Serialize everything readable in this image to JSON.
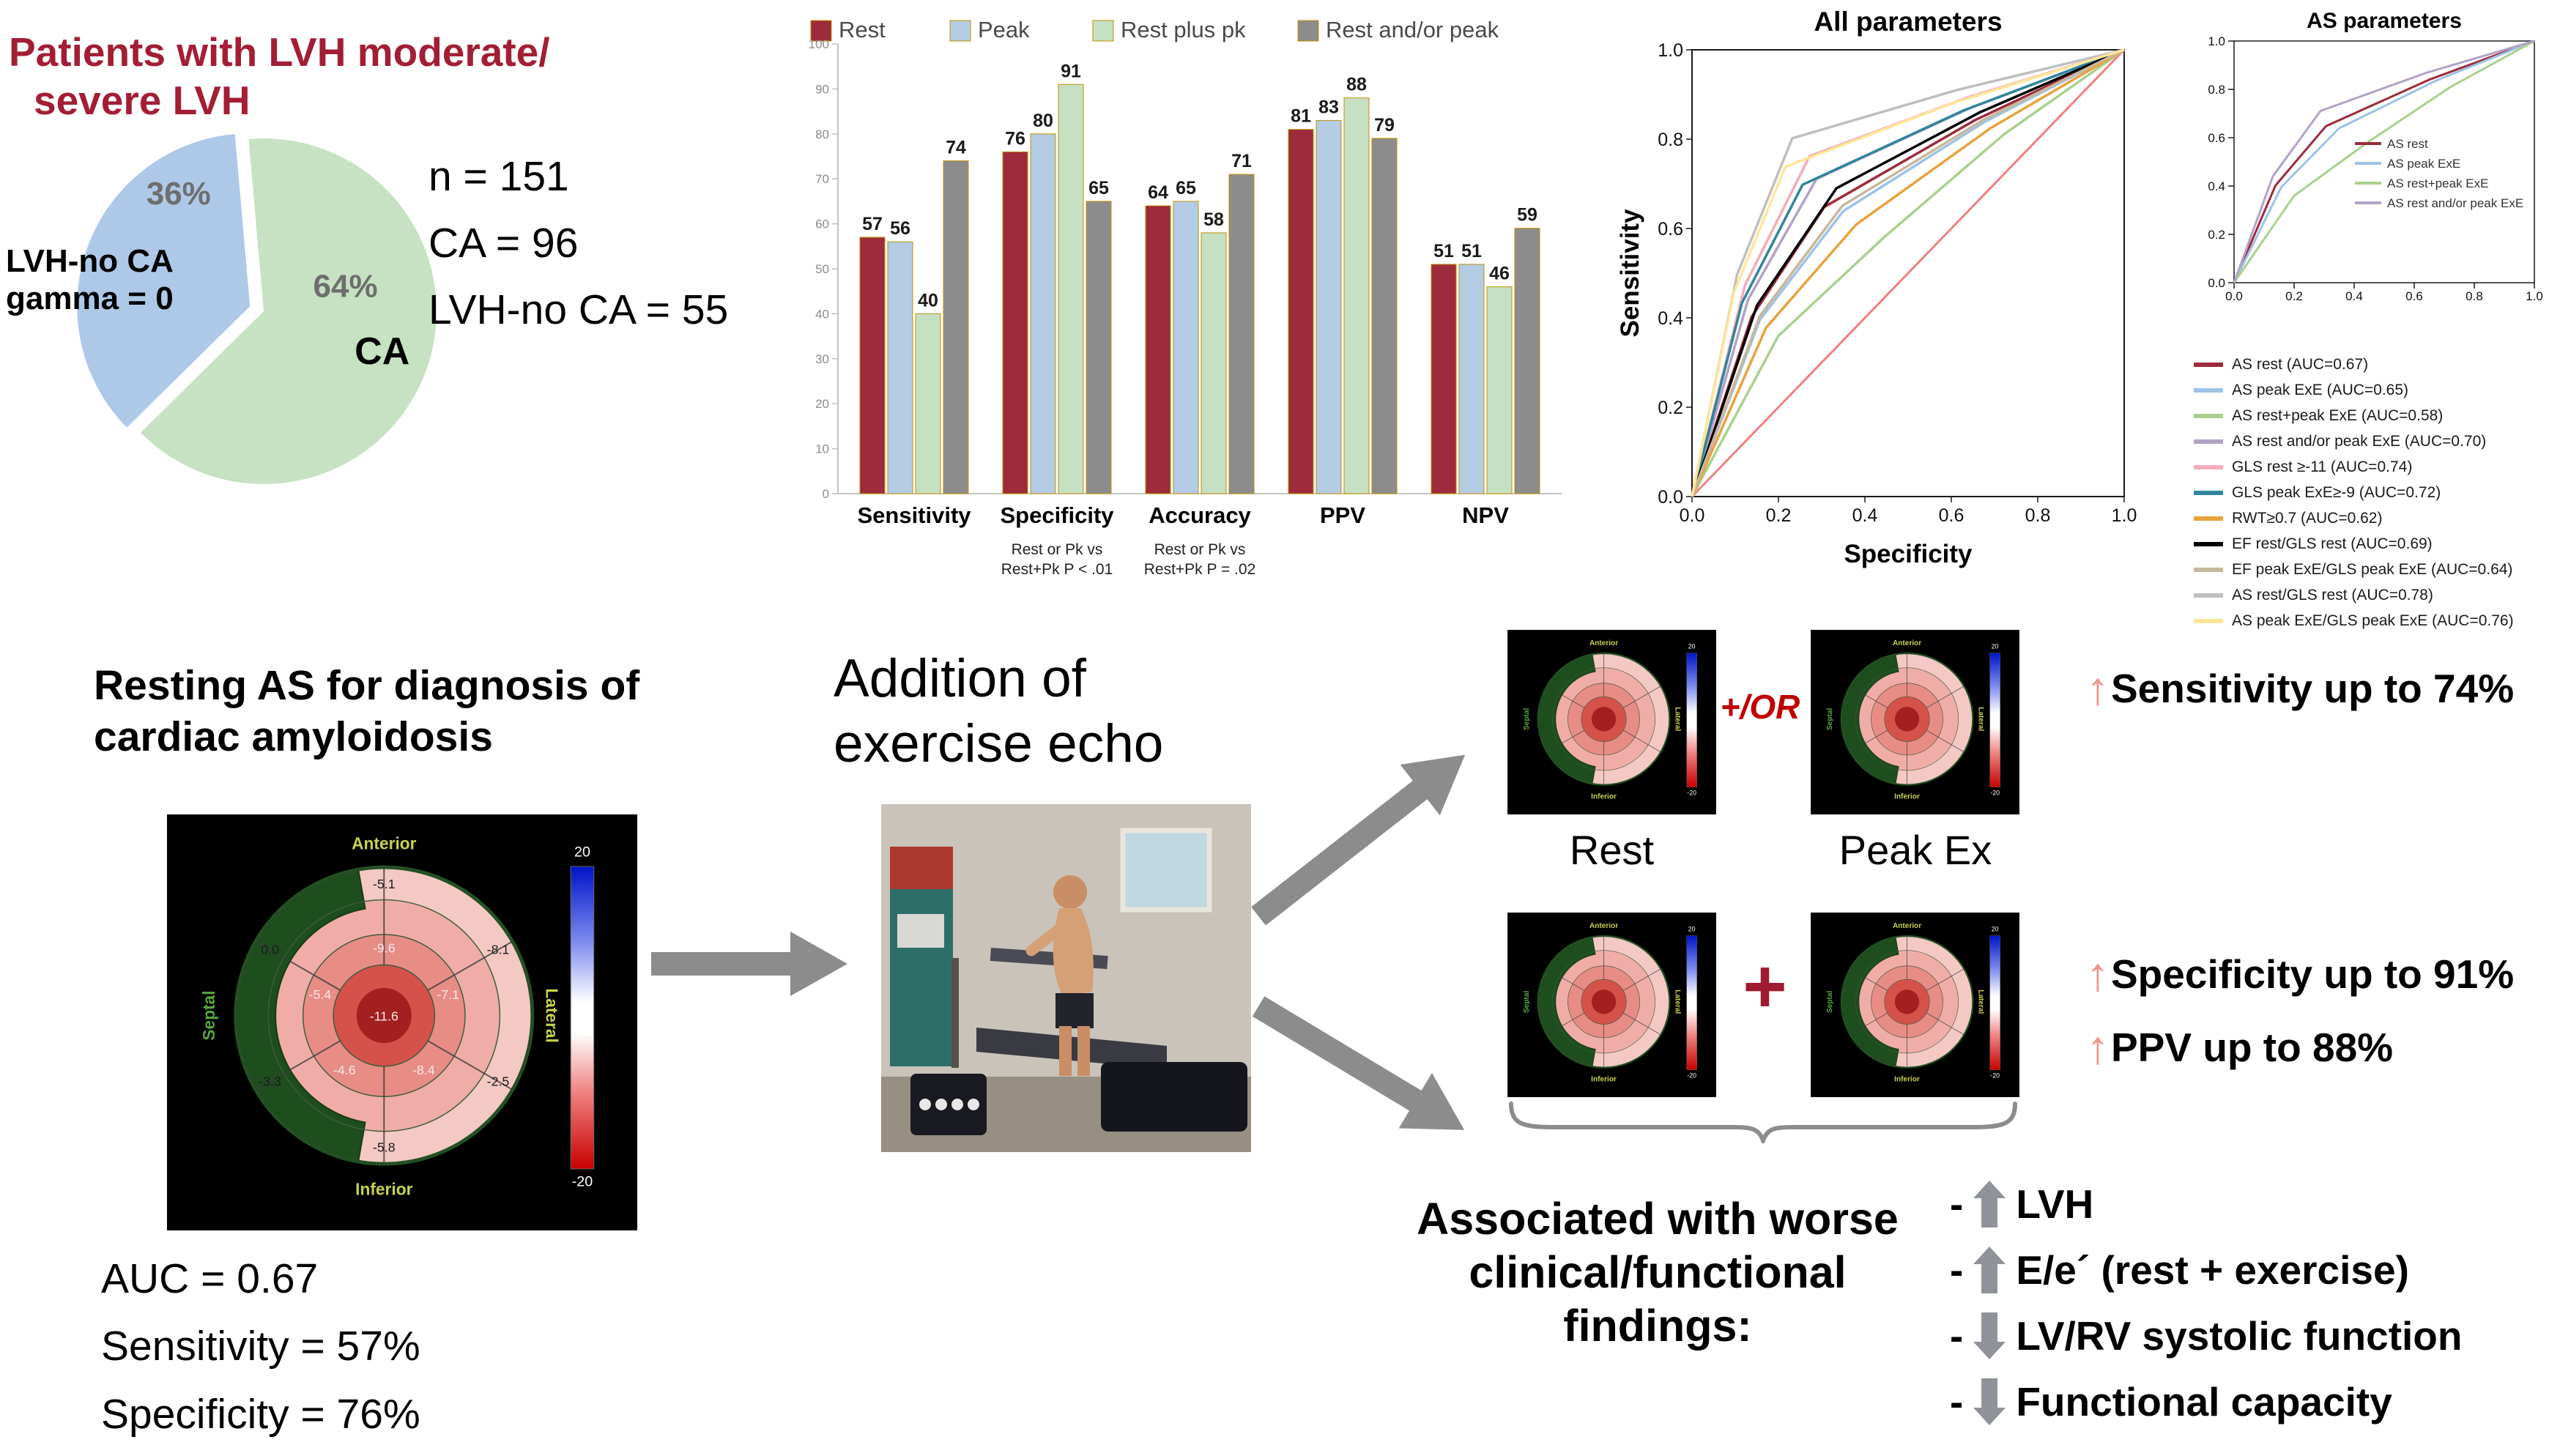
{
  "colors": {
    "title_red": "#A31E35",
    "operator_red": "#C00000",
    "plus_red": "#9E1B32",
    "result_arrow_salmon": "#F2948C",
    "big_arrow_gray": "#8C8C8C",
    "finding_arrow_gray": "#8F9399",
    "pct_label_gray": "#6E6E6E"
  },
  "pie_section": {
    "title_line1": "Patients with LVH moderate/",
    "title_line2": "severe LVH",
    "blue_slice_label_line1": "LVH-no CA",
    "blue_slice_label_line2": "gamma = 0",
    "stats": [
      "n = 151",
      "CA = 96",
      "LVH-no CA = 55"
    ]
  },
  "bullseye": {
    "region_labels": {
      "top": "Anterior",
      "bottom": "Inferior",
      "left": "Septal",
      "right": "Lateral"
    },
    "scale_max": "20",
    "scale_min": "-20",
    "ring_colors": [
      "#F4C9C4",
      "#F0ADA8",
      "#E88C86",
      "#D5524B",
      "#A32020"
    ],
    "crescent_color": "#1E4D1E",
    "segment_values": {
      "outer": [
        "-5.1",
        "-8.1",
        "-2.5",
        "-5.8",
        "-3.3",
        "0.0"
      ],
      "mid": [
        "-9.6",
        "-7.1",
        "-8.4",
        "-4.6",
        "-5.4"
      ],
      "center": "-11.6"
    }
  },
  "bottom_left": {
    "heading_line1": "Resting AS for diagnosis of",
    "heading_line2": "cardiac amyloidosis",
    "stats": [
      "AUC = 0.67",
      "Sensitivity = 57%",
      "Specificity = 76%"
    ]
  },
  "middle": {
    "heading_line1": "Addition of",
    "heading_line2": "exercise echo"
  },
  "right_section": {
    "row1": {
      "operator": "+/OR",
      "left_label": "Rest",
      "right_label": "Peak Ex",
      "result": {
        "arrow": "↑",
        "text": "Sensitivity up to 74%"
      }
    },
    "row2": {
      "operator": "+",
      "results": [
        {
          "arrow": "↑",
          "text": "Specificity up to 91%"
        },
        {
          "arrow": "↑",
          "text": "PPV up to 88%"
        }
      ]
    },
    "findings_heading_line1": "Associated with worse",
    "findings_heading_line2": "clinical/functional findings:",
    "findings": [
      {
        "bullet": "-",
        "direction": "up",
        "text": "LVH"
      },
      {
        "bullet": "-",
        "direction": "up",
        "text": "E/e´ (rest + exercise)"
      },
      {
        "bullet": "-",
        "direction": "down",
        "text": "LV/RV systolic function"
      },
      {
        "bullet": "-",
        "direction": "down",
        "text": "Functional capacity"
      }
    ]
  },
  "chart_data": [
    {
      "type": "pie",
      "title": "Patients with LVH moderate/severe LVH",
      "slices": [
        {
          "label": "LVH-no CA gamma = 0",
          "pct": 36,
          "color": "#AEC9E8",
          "pct_label": "36%"
        },
        {
          "label": "CA",
          "pct": 64,
          "color": "#C7E2C3",
          "pct_label": "64%",
          "inner_label": "CA"
        }
      ],
      "annotations": [
        "n = 151",
        "CA = 96",
        "LVH-no CA = 55"
      ]
    },
    {
      "type": "bar",
      "categories": [
        "Sensitivity",
        "Specificity",
        "Accuracy",
        "PPV",
        "NPV"
      ],
      "series": [
        {
          "name": "Rest",
          "color": "#9E2B3C",
          "values": [
            57,
            76,
            64,
            81,
            51
          ]
        },
        {
          "name": "Peak",
          "color": "#B4CCE4",
          "values": [
            56,
            80,
            65,
            83,
            51
          ]
        },
        {
          "name": "Rest plus pk",
          "color": "#C6E0C3",
          "values": [
            40,
            91,
            58,
            88,
            46
          ]
        },
        {
          "name": "Rest and/or peak",
          "color": "#8C8C8C",
          "values": [
            74,
            65,
            71,
            79,
            59
          ]
        }
      ],
      "ylim": [
        0,
        100
      ],
      "yticks": [
        0,
        10,
        20,
        30,
        40,
        50,
        60,
        70,
        80,
        90,
        100
      ],
      "bar_outline": "#BF9000",
      "footnotes": [
        {
          "category": "Specificity",
          "line1": "Rest or Pk vs",
          "line2": "Rest+Pk P < .01"
        },
        {
          "category": "Accuracy",
          "line1": "Rest or Pk vs",
          "line2": "Rest+Pk P = .02"
        }
      ]
    },
    {
      "type": "line",
      "title": "All parameters",
      "xlabel": "Specificity",
      "ylabel": "Sensitivity",
      "xlim": [
        0,
        1
      ],
      "ylim": [
        0,
        1
      ],
      "reference_color": "#F08080",
      "series": [
        {
          "name": "AS rest (AUC=0.67)",
          "auc": 0.67,
          "color": "#9E2B3C"
        },
        {
          "name": "AS peak ExE (AUC=0.65)",
          "auc": 0.65,
          "color": "#9DC3E6"
        },
        {
          "name": "AS rest+peak ExE (AUC=0.58)",
          "auc": 0.58,
          "color": "#A9D18E"
        },
        {
          "name": "AS rest and/or peak ExE (AUC=0.70)",
          "auc": 0.7,
          "color": "#B3A2C7"
        },
        {
          "name": "GLS rest ≥-11 (AUC=0.74)",
          "auc": 0.74,
          "color": "#F4ABBA"
        },
        {
          "name": "GLS peak ExE≥-9 (AUC=0.72)",
          "auc": 0.72,
          "color": "#31859B"
        },
        {
          "name": "RWT≥0.7 (AUC=0.62)",
          "auc": 0.62,
          "color": "#E8A33D"
        },
        {
          "name": "EF rest/GLS rest (AUC=0.69)",
          "auc": 0.69,
          "color": "#000000"
        },
        {
          "name": "EF peak ExE/GLS peak ExE (AUC=0.64)",
          "auc": 0.64,
          "color": "#C9B79C"
        },
        {
          "name": "AS rest/GLS rest (AUC=0.78)",
          "auc": 0.78,
          "color": "#BFBFBF"
        },
        {
          "name": "AS peak ExE/GLS peak ExE (AUC=0.76)",
          "auc": 0.76,
          "color": "#FFE699"
        }
      ]
    },
    {
      "type": "line",
      "title": "AS parameters",
      "xlim": [
        0,
        1
      ],
      "ylim": [
        0,
        1
      ],
      "legend": [
        "AS rest",
        "AS peak ExE",
        "AS rest+peak ExE",
        "AS rest and/or peak ExE"
      ],
      "series": [
        {
          "name": "AS rest",
          "auc": 0.67,
          "color": "#9E2B3C"
        },
        {
          "name": "AS peak ExE",
          "auc": 0.65,
          "color": "#9DC3E6"
        },
        {
          "name": "AS rest+peak ExE",
          "auc": 0.58,
          "color": "#A9D18E"
        },
        {
          "name": "AS rest and/or peak ExE",
          "auc": 0.7,
          "color": "#B3A2C7"
        }
      ]
    }
  ]
}
